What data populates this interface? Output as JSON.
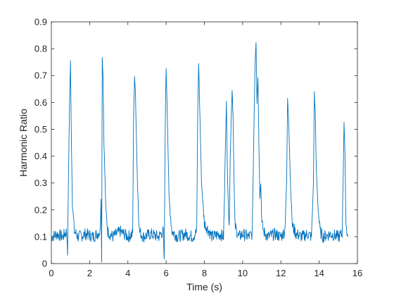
{
  "chart_data": {
    "type": "line",
    "title": "",
    "xlabel": "Time (s)",
    "ylabel": "Harmonic Ratio",
    "xlim": [
      0,
      16
    ],
    "ylim": [
      0,
      0.9
    ],
    "xticks": [
      0,
      2,
      4,
      6,
      8,
      10,
      12,
      14,
      16
    ],
    "xtick_labels": [
      "0",
      "2",
      "4",
      "6",
      "8",
      "10",
      "12",
      "14",
      "16"
    ],
    "yticks": [
      0,
      0.1,
      0.2,
      0.3,
      0.4,
      0.5,
      0.6,
      0.7,
      0.8,
      0.9
    ],
    "ytick_labels": [
      "0",
      "0.1",
      "0.2",
      "0.3",
      "0.4",
      "0.5",
      "0.6",
      "0.7",
      "0.8",
      "0.9"
    ],
    "grid": false,
    "series": [
      {
        "color": "#0072BD",
        "x": [
          0.0,
          0.3,
          0.6,
          0.8,
          0.85,
          0.9,
          0.95,
          1.0,
          1.05,
          1.1,
          1.2,
          1.4,
          1.8,
          2.2,
          2.55,
          2.6,
          2.63,
          2.66,
          2.7,
          2.75,
          2.85,
          2.95,
          3.05,
          3.2,
          3.6,
          4.0,
          4.25,
          4.3,
          4.35,
          4.4,
          4.5,
          4.6,
          4.8,
          5.2,
          5.6,
          5.85,
          5.9,
          5.95,
          6.0,
          6.05,
          6.15,
          6.3,
          6.6,
          7.0,
          7.4,
          7.6,
          7.65,
          7.7,
          7.75,
          7.85,
          8.0,
          8.4,
          8.8,
          9.0,
          9.05,
          9.1,
          9.15,
          9.2,
          9.3,
          9.35,
          9.45,
          9.5,
          9.55,
          9.6,
          9.7,
          9.8,
          10.0,
          10.3,
          10.5,
          10.6,
          10.65,
          10.7,
          10.75,
          10.8,
          10.85,
          10.9,
          10.95,
          11.0,
          11.1,
          11.3,
          11.7,
          12.0,
          12.2,
          12.3,
          12.35,
          12.4,
          12.5,
          12.6,
          12.8,
          13.1,
          13.4,
          13.6,
          13.7,
          13.75,
          13.8,
          13.85,
          13.95,
          14.05,
          14.2,
          14.6,
          15.0,
          15.2,
          15.25,
          15.3,
          15.35,
          15.4,
          15.5
        ],
        "y": [
          0.1,
          0.11,
          0.1,
          0.12,
          0.05,
          0.35,
          0.6,
          0.75,
          0.45,
          0.22,
          0.12,
          0.1,
          0.11,
          0.1,
          0.12,
          0.25,
          0.0,
          0.77,
          0.7,
          0.45,
          0.2,
          0.12,
          0.11,
          0.1,
          0.12,
          0.1,
          0.11,
          0.55,
          0.7,
          0.62,
          0.3,
          0.12,
          0.1,
          0.11,
          0.1,
          0.12,
          0.0,
          0.5,
          0.73,
          0.6,
          0.25,
          0.12,
          0.1,
          0.11,
          0.1,
          0.12,
          0.55,
          0.75,
          0.6,
          0.3,
          0.15,
          0.1,
          0.11,
          0.1,
          0.25,
          0.45,
          0.6,
          0.35,
          0.12,
          0.4,
          0.65,
          0.55,
          0.3,
          0.14,
          0.12,
          0.1,
          0.11,
          0.1,
          0.11,
          0.55,
          0.75,
          0.83,
          0.6,
          0.7,
          0.45,
          0.25,
          0.3,
          0.15,
          0.12,
          0.1,
          0.11,
          0.1,
          0.12,
          0.3,
          0.61,
          0.55,
          0.3,
          0.14,
          0.11,
          0.1,
          0.11,
          0.1,
          0.3,
          0.64,
          0.55,
          0.35,
          0.2,
          0.12,
          0.1,
          0.11,
          0.1,
          0.11,
          0.3,
          0.53,
          0.4,
          0.15,
          0.1
        ]
      }
    ]
  }
}
